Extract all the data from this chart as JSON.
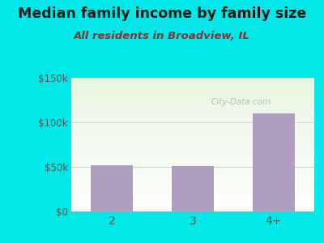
{
  "title": "Median family income by family size",
  "subtitle": "All residents in Broadview, IL",
  "categories": [
    "2",
    "3",
    "4+"
  ],
  "values": [
    52000,
    51000,
    110000
  ],
  "bar_color": "#b09ec0",
  "outer_bg": "#00e8e8",
  "plot_bg_top": "#e8f5e0",
  "plot_bg_bottom": "#f8fff8",
  "title_color": "#1a1a1a",
  "subtitle_color": "#8b3030",
  "tick_color": "#555555",
  "ytick_color": "#555555",
  "ylim": [
    0,
    150000
  ],
  "yticks": [
    0,
    50000,
    100000,
    150000
  ],
  "ytick_labels": [
    "$0",
    "$50k",
    "$100k",
    "$150k"
  ],
  "watermark": "City-Data.com",
  "title_fontsize": 12.5,
  "subtitle_fontsize": 9.5,
  "grid_color": "#d0d8c8",
  "bottom_spine_color": "#aaaaaa"
}
